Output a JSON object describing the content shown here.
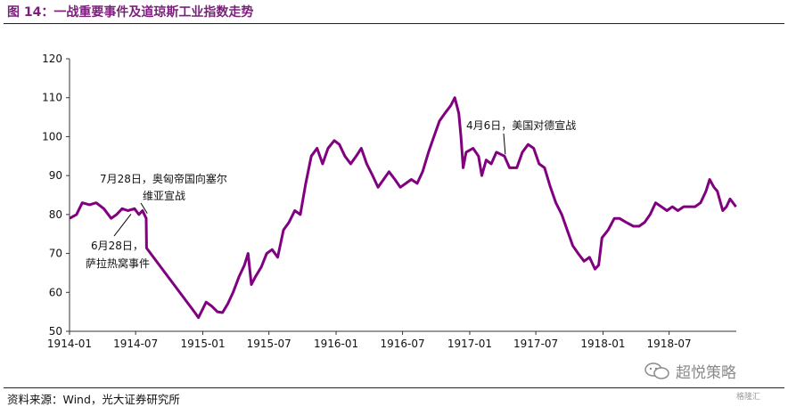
{
  "header": {
    "title": "图 14：一战重要事件及道琼斯工业指数走势"
  },
  "footer": {
    "source": "资料来源：Wind，光大证券研究所"
  },
  "watermark": {
    "text": "超悦策略",
    "icon": "wechat-icon"
  },
  "badge": {
    "text": "格隆汇"
  },
  "colors": {
    "series": "#800080",
    "title": "#7b1f7a",
    "text": "#111111"
  },
  "chart_data": {
    "type": "line",
    "title": "",
    "xlabel": "",
    "ylabel": "",
    "ylim": [
      50,
      120
    ],
    "yticks": [
      "50",
      "60",
      "70",
      "80",
      "90",
      "100",
      "110",
      "120"
    ],
    "xticks": [
      "1914-01",
      "1914-07",
      "1915-01",
      "1915-07",
      "1916-01",
      "1916-07",
      "1917-01",
      "1917-07",
      "1918-01",
      "1918-07"
    ],
    "grid": false,
    "legend": "none",
    "series": [
      {
        "name": "",
        "points": [
          [
            "1914-01-01",
            79
          ],
          [
            "1914-01-20",
            80
          ],
          [
            "1914-02-05",
            83
          ],
          [
            "1914-02-25",
            82.5
          ],
          [
            "1914-03-15",
            83
          ],
          [
            "1914-04-05",
            81.5
          ],
          [
            "1914-04-25",
            79
          ],
          [
            "1914-05-10",
            80
          ],
          [
            "1914-05-25",
            81.5
          ],
          [
            "1914-06-10",
            81
          ],
          [
            "1914-06-28",
            81.5
          ],
          [
            "1914-07-10",
            80
          ],
          [
            "1914-07-20",
            81
          ],
          [
            "1914-07-30",
            79
          ],
          [
            "1914-07-31",
            71.4
          ],
          [
            "1914-12-12",
            54.6
          ],
          [
            "1914-12-20",
            53.5
          ],
          [
            "1914-12-28",
            55
          ],
          [
            "1915-01-10",
            57.5
          ],
          [
            "1915-01-25",
            56.5
          ],
          [
            "1915-02-10",
            55
          ],
          [
            "1915-02-24",
            54.8
          ],
          [
            "1915-03-10",
            57
          ],
          [
            "1915-03-25",
            60
          ],
          [
            "1915-04-10",
            64
          ],
          [
            "1915-04-25",
            67
          ],
          [
            "1915-05-05",
            70
          ],
          [
            "1915-05-14",
            62
          ],
          [
            "1915-05-25",
            64
          ],
          [
            "1915-06-10",
            66.5
          ],
          [
            "1915-06-25",
            70
          ],
          [
            "1915-07-10",
            71
          ],
          [
            "1915-07-25",
            69
          ],
          [
            "1915-08-10",
            76
          ],
          [
            "1915-08-25",
            78
          ],
          [
            "1915-09-10",
            81
          ],
          [
            "1915-09-25",
            80
          ],
          [
            "1915-10-10",
            88
          ],
          [
            "1915-10-25",
            95
          ],
          [
            "1915-11-10",
            97
          ],
          [
            "1915-11-25",
            93
          ],
          [
            "1915-12-10",
            97
          ],
          [
            "1915-12-27",
            99
          ],
          [
            "1916-01-10",
            98
          ],
          [
            "1916-01-25",
            95
          ],
          [
            "1916-02-10",
            93
          ],
          [
            "1916-02-25",
            95
          ],
          [
            "1916-03-10",
            97
          ],
          [
            "1916-03-25",
            93
          ],
          [
            "1916-04-10",
            90
          ],
          [
            "1916-04-25",
            87
          ],
          [
            "1916-05-10",
            89
          ],
          [
            "1916-05-25",
            91
          ],
          [
            "1916-06-10",
            89
          ],
          [
            "1916-06-25",
            87
          ],
          [
            "1916-07-10",
            88
          ],
          [
            "1916-07-25",
            89
          ],
          [
            "1916-08-10",
            88
          ],
          [
            "1916-08-25",
            91
          ],
          [
            "1916-09-10",
            96
          ],
          [
            "1916-09-25",
            100
          ],
          [
            "1916-10-10",
            104
          ],
          [
            "1916-10-25",
            106
          ],
          [
            "1916-11-10",
            108
          ],
          [
            "1916-11-21",
            110
          ],
          [
            "1916-12-02",
            106
          ],
          [
            "1916-12-08",
            100
          ],
          [
            "1916-12-14",
            92
          ],
          [
            "1916-12-22",
            96
          ],
          [
            "1917-01-10",
            97
          ],
          [
            "1917-01-25",
            95
          ],
          [
            "1917-02-03",
            90
          ],
          [
            "1917-02-15",
            94
          ],
          [
            "1917-03-01",
            93
          ],
          [
            "1917-03-15",
            96
          ],
          [
            "1917-04-06",
            95
          ],
          [
            "1917-04-20",
            92
          ],
          [
            "1917-05-10",
            92
          ],
          [
            "1917-05-25",
            96
          ],
          [
            "1917-06-10",
            98
          ],
          [
            "1917-06-25",
            97
          ],
          [
            "1917-07-10",
            93
          ],
          [
            "1917-07-25",
            92
          ],
          [
            "1917-08-10",
            87
          ],
          [
            "1917-08-25",
            83
          ],
          [
            "1917-09-10",
            80
          ],
          [
            "1917-09-25",
            76
          ],
          [
            "1917-10-10",
            72
          ],
          [
            "1917-10-25",
            70
          ],
          [
            "1917-11-10",
            68
          ],
          [
            "1917-11-25",
            69
          ],
          [
            "1917-12-10",
            66
          ],
          [
            "1917-12-20",
            67
          ],
          [
            "1917-12-29",
            74
          ],
          [
            "1918-01-15",
            76
          ],
          [
            "1918-02-01",
            79
          ],
          [
            "1918-02-15",
            79
          ],
          [
            "1918-03-05",
            78
          ],
          [
            "1918-03-25",
            77
          ],
          [
            "1918-04-10",
            77
          ],
          [
            "1918-04-25",
            78
          ],
          [
            "1918-05-10",
            80
          ],
          [
            "1918-05-25",
            83
          ],
          [
            "1918-06-10",
            82
          ],
          [
            "1918-06-25",
            81
          ],
          [
            "1918-07-10",
            82
          ],
          [
            "1918-07-25",
            81
          ],
          [
            "1918-08-10",
            82
          ],
          [
            "1918-08-25",
            82
          ],
          [
            "1918-09-10",
            82
          ],
          [
            "1918-09-25",
            83
          ],
          [
            "1918-10-10",
            86
          ],
          [
            "1918-10-20",
            89
          ],
          [
            "1918-11-01",
            87
          ],
          [
            "1918-11-10",
            86
          ],
          [
            "1918-11-25",
            81
          ],
          [
            "1918-12-05",
            82
          ],
          [
            "1918-12-15",
            84
          ],
          [
            "1918-12-31",
            82
          ]
        ]
      }
    ],
    "annotations": [
      {
        "lines": [
          "7月28日，奥匈帝国向塞尔",
          "维亚宣战"
        ],
        "date": "1914-07-28",
        "value": 80.5
      },
      {
        "lines": [
          "6月28日，",
          "萨拉热窝事件"
        ],
        "date": "1914-06-28",
        "value": 81
      },
      {
        "lines": [
          "4月6日，美国对德宣战"
        ],
        "date": "1917-04-06",
        "value": 95
      }
    ]
  }
}
